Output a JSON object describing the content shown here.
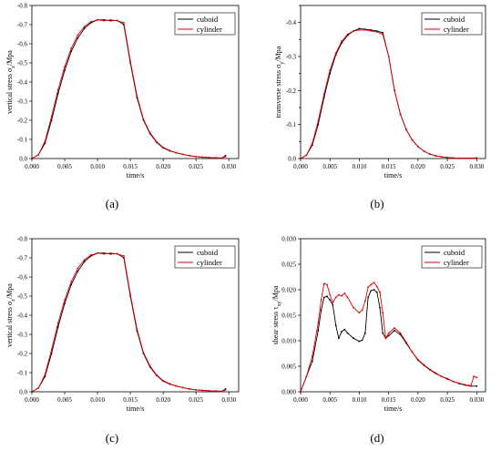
{
  "colors": {
    "cuboid": "#000000",
    "cylinder": "#e00000"
  },
  "chart_data": [
    {
      "type": "line",
      "label": "(a)",
      "xlabel": "time/s",
      "ylabel_main": "vertical stress σ",
      "ylabel_sub": "z",
      "ylabel_tail": "/Mpa",
      "xlim": [
        0,
        0.0315
      ],
      "ylim": [
        0,
        -0.8
      ],
      "xticks": [
        0,
        0.005,
        0.01,
        0.015,
        0.02,
        0.025,
        0.03
      ],
      "xtick_labels": [
        "0.000",
        "0.005",
        "0.010",
        "0.015",
        "0.020",
        "0.025",
        "0.030"
      ],
      "yticks": [
        0,
        -0.1,
        -0.2,
        -0.3,
        -0.4,
        -0.5,
        -0.6,
        -0.7,
        -0.8
      ],
      "ytick_labels": [
        "0.0",
        "-0.1",
        "-0.2",
        "-0.3",
        "-0.4",
        "-0.5",
        "-0.6",
        "-0.7",
        "-0.8"
      ],
      "legend": "top-right",
      "series": [
        {
          "name": "cuboid",
          "x": [
            0,
            0.001,
            0.002,
            0.003,
            0.004,
            0.005,
            0.006,
            0.007,
            0.008,
            0.009,
            0.01,
            0.011,
            0.012,
            0.013,
            0.014,
            0.015,
            0.016,
            0.017,
            0.018,
            0.019,
            0.02,
            0.021,
            0.022,
            0.023,
            0.024,
            0.025,
            0.026,
            0.027,
            0.028,
            0.029,
            0.0295
          ],
          "y": [
            0,
            -0.02,
            -0.08,
            -0.2,
            -0.34,
            -0.46,
            -0.56,
            -0.63,
            -0.68,
            -0.71,
            -0.725,
            -0.725,
            -0.72,
            -0.722,
            -0.7,
            -0.5,
            -0.32,
            -0.2,
            -0.13,
            -0.085,
            -0.055,
            -0.04,
            -0.03,
            -0.022,
            -0.015,
            -0.01,
            -0.007,
            -0.005,
            -0.004,
            -0.003,
            -0.015
          ]
        },
        {
          "name": "cylinder",
          "x": [
            0,
            0.001,
            0.002,
            0.003,
            0.004,
            0.005,
            0.006,
            0.007,
            0.008,
            0.009,
            0.01,
            0.011,
            0.012,
            0.013,
            0.014,
            0.015,
            0.016,
            0.017,
            0.018,
            0.019,
            0.02,
            0.021,
            0.022,
            0.023,
            0.024,
            0.025,
            0.026,
            0.027,
            0.028,
            0.029,
            0.0295
          ],
          "y": [
            0,
            -0.02,
            -0.09,
            -0.22,
            -0.36,
            -0.48,
            -0.575,
            -0.645,
            -0.69,
            -0.715,
            -0.725,
            -0.72,
            -0.725,
            -0.72,
            -0.71,
            -0.51,
            -0.33,
            -0.205,
            -0.135,
            -0.088,
            -0.058,
            -0.042,
            -0.03,
            -0.022,
            -0.015,
            -0.01,
            -0.007,
            -0.005,
            -0.004,
            -0.003,
            -0.01
          ]
        }
      ]
    },
    {
      "type": "line",
      "label": "(b)",
      "xlabel": "time/s",
      "ylabel_main": "transverse stress σ",
      "ylabel_sub": "y",
      "ylabel_tail": "/Mpa",
      "xlim": [
        0,
        0.0315
      ],
      "ylim": [
        0,
        -0.45
      ],
      "xticks": [
        0,
        0.005,
        0.01,
        0.015,
        0.02,
        0.025,
        0.03
      ],
      "xtick_labels": [
        "0.000",
        "0.005",
        "0.010",
        "0.015",
        "0.020",
        "0.025",
        "0.030"
      ],
      "yticks": [
        0,
        -0.05,
        -0.1,
        -0.15,
        -0.2,
        -0.25,
        -0.3,
        -0.35,
        -0.4,
        -0.45
      ],
      "ytick_labels": [
        "0.0",
        "",
        "-0.1",
        "",
        "-0.2",
        "",
        "-0.3",
        "",
        "-0.4",
        ""
      ],
      "legend": "top-right",
      "series": [
        {
          "name": "cuboid",
          "x": [
            0,
            0.001,
            0.002,
            0.003,
            0.004,
            0.005,
            0.006,
            0.007,
            0.008,
            0.009,
            0.01,
            0.011,
            0.012,
            0.013,
            0.014,
            0.015,
            0.016,
            0.017,
            0.018,
            0.019,
            0.02,
            0.021,
            0.022,
            0.023,
            0.024,
            0.025,
            0.026,
            0.027,
            0.028,
            0.029,
            0.03
          ],
          "y": [
            0,
            -0.01,
            -0.04,
            -0.1,
            -0.18,
            -0.25,
            -0.305,
            -0.34,
            -0.362,
            -0.375,
            -0.382,
            -0.38,
            -0.378,
            -0.375,
            -0.37,
            -0.3,
            -0.2,
            -0.13,
            -0.085,
            -0.055,
            -0.035,
            -0.022,
            -0.013,
            -0.008,
            -0.005,
            -0.003,
            -0.002,
            -0.001,
            -0.001,
            -0.001,
            -0.002
          ]
        },
        {
          "name": "cylinder",
          "x": [
            0,
            0.001,
            0.002,
            0.003,
            0.004,
            0.005,
            0.006,
            0.007,
            0.008,
            0.009,
            0.01,
            0.011,
            0.012,
            0.013,
            0.014,
            0.015,
            0.016,
            0.017,
            0.018,
            0.019,
            0.02,
            0.021,
            0.022,
            0.023,
            0.024,
            0.025,
            0.026,
            0.027,
            0.028,
            0.029,
            0.03
          ],
          "y": [
            0,
            -0.01,
            -0.045,
            -0.11,
            -0.19,
            -0.26,
            -0.31,
            -0.345,
            -0.365,
            -0.375,
            -0.378,
            -0.378,
            -0.375,
            -0.372,
            -0.365,
            -0.3,
            -0.2,
            -0.13,
            -0.085,
            -0.055,
            -0.035,
            -0.022,
            -0.013,
            -0.008,
            -0.005,
            -0.003,
            -0.002,
            -0.001,
            -0.001,
            -0.001,
            -0.001
          ]
        }
      ]
    },
    {
      "type": "line",
      "label": "(c)",
      "xlabel": "time/s",
      "ylabel_main": "vertical stress σ",
      "ylabel_sub": "z",
      "ylabel_tail": "/Mpa",
      "xlim": [
        0,
        0.0315
      ],
      "ylim": [
        0,
        -0.8
      ],
      "xticks": [
        0,
        0.005,
        0.01,
        0.015,
        0.02,
        0.025,
        0.03
      ],
      "xtick_labels": [
        "0.000",
        "0.005",
        "0.010",
        "0.015",
        "0.020",
        "0.025",
        "0.030"
      ],
      "yticks": [
        0,
        -0.1,
        -0.2,
        -0.3,
        -0.4,
        -0.5,
        -0.6,
        -0.7,
        -0.8
      ],
      "ytick_labels": [
        "0.0",
        "-0.1",
        "-0.2",
        "-0.3",
        "-0.4",
        "-0.5",
        "-0.6",
        "-0.7",
        "-0.8"
      ],
      "legend": "top-right",
      "series": [
        {
          "name": "cuboid",
          "x": [
            0,
            0.001,
            0.002,
            0.003,
            0.004,
            0.005,
            0.006,
            0.007,
            0.008,
            0.009,
            0.01,
            0.011,
            0.012,
            0.013,
            0.014,
            0.015,
            0.016,
            0.017,
            0.018,
            0.019,
            0.02,
            0.021,
            0.022,
            0.023,
            0.024,
            0.025,
            0.026,
            0.027,
            0.028,
            0.029,
            0.0295
          ],
          "y": [
            0,
            -0.02,
            -0.08,
            -0.2,
            -0.34,
            -0.46,
            -0.56,
            -0.63,
            -0.68,
            -0.71,
            -0.725,
            -0.725,
            -0.72,
            -0.722,
            -0.7,
            -0.5,
            -0.32,
            -0.2,
            -0.13,
            -0.085,
            -0.055,
            -0.04,
            -0.03,
            -0.022,
            -0.015,
            -0.01,
            -0.007,
            -0.005,
            -0.004,
            -0.003,
            -0.015
          ]
        },
        {
          "name": "cylinder",
          "x": [
            0,
            0.001,
            0.002,
            0.003,
            0.004,
            0.005,
            0.006,
            0.007,
            0.008,
            0.009,
            0.01,
            0.011,
            0.012,
            0.013,
            0.014,
            0.015,
            0.016,
            0.017,
            0.018,
            0.019,
            0.02,
            0.021,
            0.022,
            0.023,
            0.024,
            0.025,
            0.026,
            0.027,
            0.028,
            0.029,
            0.0295
          ],
          "y": [
            0,
            -0.02,
            -0.09,
            -0.22,
            -0.36,
            -0.48,
            -0.575,
            -0.645,
            -0.69,
            -0.715,
            -0.725,
            -0.72,
            -0.725,
            -0.72,
            -0.71,
            -0.51,
            -0.33,
            -0.205,
            -0.135,
            -0.088,
            -0.058,
            -0.042,
            -0.03,
            -0.022,
            -0.015,
            -0.01,
            -0.007,
            -0.005,
            -0.004,
            -0.003,
            -0.01
          ]
        }
      ]
    },
    {
      "type": "line",
      "label": "(d)",
      "xlabel": "time/s",
      "ylabel_main": "shear stress τ",
      "ylabel_sub": "xy",
      "ylabel_tail": "/Mpa",
      "xlim": [
        0,
        0.0315
      ],
      "ylim": [
        0,
        0.03
      ],
      "xticks": [
        0,
        0.005,
        0.01,
        0.015,
        0.02,
        0.025,
        0.03
      ],
      "xtick_labels": [
        "0.000",
        "0.005",
        "0.010",
        "0.015",
        "0.020",
        "0.025",
        "0.030"
      ],
      "yticks": [
        0,
        0.005,
        0.01,
        0.015,
        0.02,
        0.025,
        0.03
      ],
      "ytick_labels": [
        "0.000",
        "0.005",
        "0.010",
        "0.015",
        "0.020",
        "0.025",
        "0.030"
      ],
      "legend": "top-right",
      "series": [
        {
          "name": "cuboid",
          "x": [
            0,
            0.001,
            0.002,
            0.003,
            0.0035,
            0.004,
            0.0045,
            0.005,
            0.0055,
            0.006,
            0.0065,
            0.007,
            0.0075,
            0.008,
            0.009,
            0.01,
            0.0105,
            0.011,
            0.0115,
            0.012,
            0.0125,
            0.013,
            0.0135,
            0.014,
            0.0145,
            0.015,
            0.016,
            0.017,
            0.018,
            0.019,
            0.02,
            0.021,
            0.022,
            0.023,
            0.024,
            0.025,
            0.026,
            0.027,
            0.028,
            0.029,
            0.03
          ],
          "y": [
            0,
            0.003,
            0.006,
            0.012,
            0.016,
            0.0185,
            0.0187,
            0.018,
            0.017,
            0.013,
            0.0105,
            0.0118,
            0.0122,
            0.0115,
            0.0105,
            0.0099,
            0.0101,
            0.0115,
            0.0185,
            0.0198,
            0.02,
            0.0195,
            0.0165,
            0.0115,
            0.0105,
            0.011,
            0.012,
            0.0112,
            0.0095,
            0.0078,
            0.0062,
            0.0052,
            0.0043,
            0.0036,
            0.003,
            0.0025,
            0.002,
            0.0016,
            0.0013,
            0.0011,
            0.0011
          ]
        },
        {
          "name": "cylinder",
          "x": [
            0,
            0.001,
            0.002,
            0.003,
            0.0035,
            0.004,
            0.0045,
            0.005,
            0.0055,
            0.006,
            0.0065,
            0.007,
            0.0075,
            0.008,
            0.009,
            0.01,
            0.0105,
            0.011,
            0.0115,
            0.012,
            0.0125,
            0.013,
            0.0135,
            0.014,
            0.0145,
            0.015,
            0.016,
            0.017,
            0.018,
            0.019,
            0.02,
            0.021,
            0.022,
            0.023,
            0.024,
            0.025,
            0.026,
            0.027,
            0.028,
            0.029,
            0.0295,
            0.03
          ],
          "y": [
            0,
            0.003,
            0.007,
            0.0135,
            0.018,
            0.0212,
            0.021,
            0.019,
            0.0175,
            0.0185,
            0.019,
            0.0188,
            0.0193,
            0.0185,
            0.0165,
            0.0155,
            0.016,
            0.0178,
            0.0205,
            0.021,
            0.0214,
            0.0206,
            0.0195,
            0.0155,
            0.0105,
            0.0115,
            0.0125,
            0.0115,
            0.0097,
            0.0078,
            0.0063,
            0.0053,
            0.0044,
            0.0037,
            0.003,
            0.0026,
            0.002,
            0.0017,
            0.0014,
            0.0012,
            0.003,
            0.0028
          ]
        }
      ]
    }
  ]
}
